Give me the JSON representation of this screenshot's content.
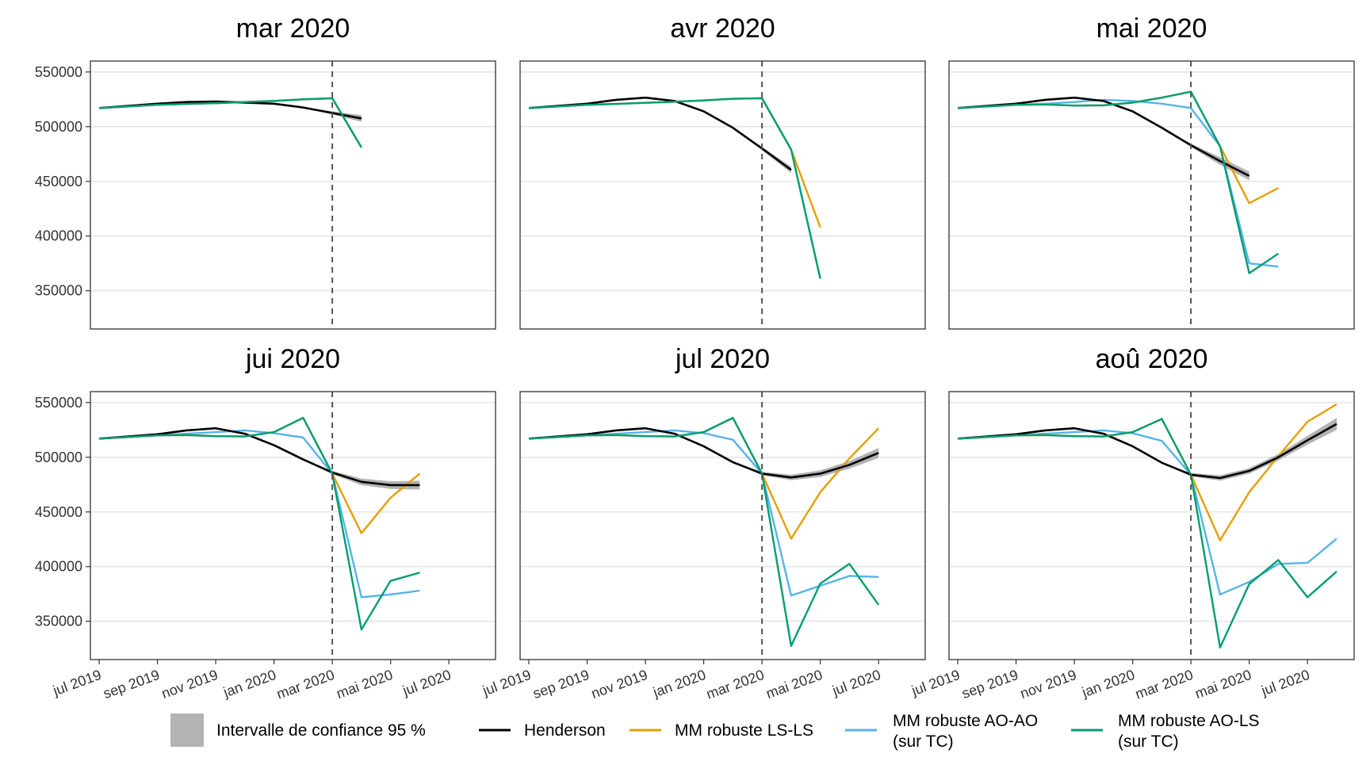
{
  "chart_data": {
    "type": "line",
    "layout": "faceted 2x3",
    "y_ticks": [
      350000,
      400000,
      450000,
      500000,
      550000
    ],
    "ylim": [
      315000,
      560000
    ],
    "x_ticks": [
      "jul 2019",
      "sep 2019",
      "nov 2019",
      "jan 2020",
      "mar 2020",
      "mai 2020",
      "jul 2020"
    ],
    "x_months": [
      "jul 2019",
      "aoû 2019",
      "sep 2019",
      "oct 2019",
      "nov 2019",
      "déc 2019",
      "jan 2020",
      "fév 2020",
      "mar 2020",
      "avr 2020",
      "mai 2020",
      "jui 2020",
      "jul 2020",
      "aoû 2020"
    ],
    "xlim_months_from_jul2019": [
      -0.3,
      13.6
    ],
    "vline_month": "mar 2020",
    "grid": "horizontal major lines",
    "legend_position": "bottom",
    "series_colors": {
      "henderson": "#000000",
      "ls_ls": "#E69F00",
      "ao_ao": "#56B4E9",
      "ao_ls": "#009E73",
      "ci": "#b3b3b3"
    },
    "legend": {
      "ci": "Intervalle de confiance 95 %",
      "henderson": "Henderson",
      "ls_ls": "MM robuste LS-LS",
      "ao_ao": [
        "MM robuste AO-AO",
        "(sur TC)"
      ],
      "ao_ls": [
        "MM robuste AO-LS",
        "(sur TC)"
      ]
    },
    "panels": [
      {
        "title": "mar 2020",
        "henderson": [
          517000,
          519000,
          521000,
          522500,
          523000,
          522000,
          521000,
          517500,
          512500,
          507500
        ],
        "ci_halfwidth": [
          0,
          0,
          0,
          0,
          0,
          0,
          0,
          0,
          1500,
          3000
        ],
        "ls_ls": [
          517000,
          518500,
          520000,
          520800,
          521500,
          522500,
          523500,
          525000,
          526000,
          481000
        ],
        "ao_ao": [
          517000,
          518500,
          520000,
          520800,
          521500,
          522500,
          523500,
          525000,
          526000,
          481000
        ],
        "ao_ls": [
          517000,
          518500,
          520000,
          520800,
          521500,
          522500,
          523500,
          525000,
          526000,
          481000
        ]
      },
      {
        "title": "avr 2020",
        "henderson": [
          517000,
          519000,
          521000,
          524500,
          526500,
          523500,
          514000,
          499000,
          480000,
          460500
        ],
        "ci_halfwidth": [
          0,
          0,
          0,
          0,
          0,
          0,
          0,
          0,
          1500,
          3000
        ],
        "ls_ls": [
          517000,
          518500,
          520000,
          520800,
          521800,
          522800,
          524000,
          525500,
          526000,
          479000,
          408000
        ],
        "ao_ao": [
          517000,
          518500,
          520000,
          520800,
          521800,
          522800,
          524000,
          525500,
          526000,
          479000,
          361000
        ],
        "ao_ls": [
          517000,
          518500,
          520000,
          520800,
          521800,
          522800,
          524000,
          525500,
          526000,
          479000,
          361000
        ]
      },
      {
        "title": "mai 2020",
        "henderson": [
          517000,
          519000,
          521000,
          524500,
          526500,
          523500,
          514000,
          499000,
          483000,
          468500,
          455000
        ],
        "ci_halfwidth": [
          0,
          0,
          0,
          0,
          0,
          0,
          0,
          0,
          1500,
          3500,
          4000
        ],
        "ls_ls": [
          517000,
          518500,
          520000,
          520300,
          519300,
          519500,
          522000,
          526500,
          532000,
          482000,
          430000,
          444000
        ],
        "ao_ao": [
          517000,
          518500,
          520000,
          521000,
          522500,
          524500,
          523500,
          521000,
          517000,
          482000,
          375000,
          372000
        ],
        "ao_ls": [
          517000,
          518500,
          520000,
          520300,
          519300,
          519500,
          522000,
          526500,
          532000,
          482000,
          366000,
          384000
        ]
      },
      {
        "title": "jui 2020",
        "henderson": [
          517000,
          519000,
          521000,
          524500,
          526500,
          521500,
          511000,
          498000,
          486000,
          477500,
          474500,
          474500
        ],
        "ci_halfwidth": [
          0,
          0,
          0,
          0,
          0,
          0,
          0,
          0,
          1500,
          3000,
          3500,
          4000
        ],
        "ls_ls": [
          517000,
          518500,
          520000,
          520300,
          519300,
          519000,
          523000,
          536000,
          485000,
          430500,
          463000,
          485000
        ],
        "ao_ao": [
          517000,
          518500,
          520000,
          521500,
          523000,
          524500,
          522000,
          518000,
          485000,
          372000,
          374500,
          378000
        ],
        "ao_ls": [
          517000,
          518500,
          520000,
          520300,
          519300,
          519000,
          523000,
          536000,
          485000,
          342500,
          387000,
          394500
        ]
      },
      {
        "title": "jul 2020",
        "henderson": [
          517000,
          519000,
          521000,
          524500,
          526500,
          521500,
          510000,
          495500,
          485000,
          481500,
          485000,
          493000,
          504000
        ],
        "ci_halfwidth": [
          0,
          0,
          0,
          0,
          0,
          0,
          0,
          0,
          1500,
          2500,
          3000,
          3500,
          4500
        ],
        "ls_ls": [
          517000,
          518500,
          520000,
          520300,
          519300,
          519000,
          523000,
          536000,
          485000,
          425500,
          468000,
          499000,
          526500
        ],
        "ao_ao": [
          517000,
          518500,
          520000,
          521500,
          523000,
          524500,
          522000,
          516000,
          485000,
          373500,
          382500,
          391500,
          390500
        ],
        "ao_ls": [
          517000,
          518500,
          520000,
          520300,
          519300,
          519000,
          523000,
          536000,
          485000,
          327500,
          384500,
          402500,
          365000
        ]
      },
      {
        "title": "aoû 2020",
        "henderson": [
          517000,
          519000,
          521000,
          524500,
          526500,
          521500,
          510000,
          495000,
          484000,
          481000,
          487500,
          500000,
          515500,
          530500
        ],
        "ci_halfwidth": [
          0,
          0,
          0,
          0,
          0,
          0,
          0,
          0,
          1500,
          2500,
          2500,
          3000,
          4000,
          5500
        ],
        "ls_ls": [
          517000,
          518500,
          520000,
          520300,
          519300,
          519000,
          523000,
          535000,
          484000,
          424000,
          468000,
          501000,
          532500,
          548500
        ],
        "ao_ao": [
          517000,
          518500,
          520000,
          521500,
          523000,
          524500,
          522000,
          515000,
          484000,
          374500,
          386000,
          402500,
          403500,
          425500
        ],
        "ao_ls": [
          517000,
          518500,
          520000,
          520300,
          519300,
          519000,
          523000,
          535000,
          484000,
          326000,
          384000,
          406000,
          372000,
          395500
        ]
      }
    ]
  }
}
